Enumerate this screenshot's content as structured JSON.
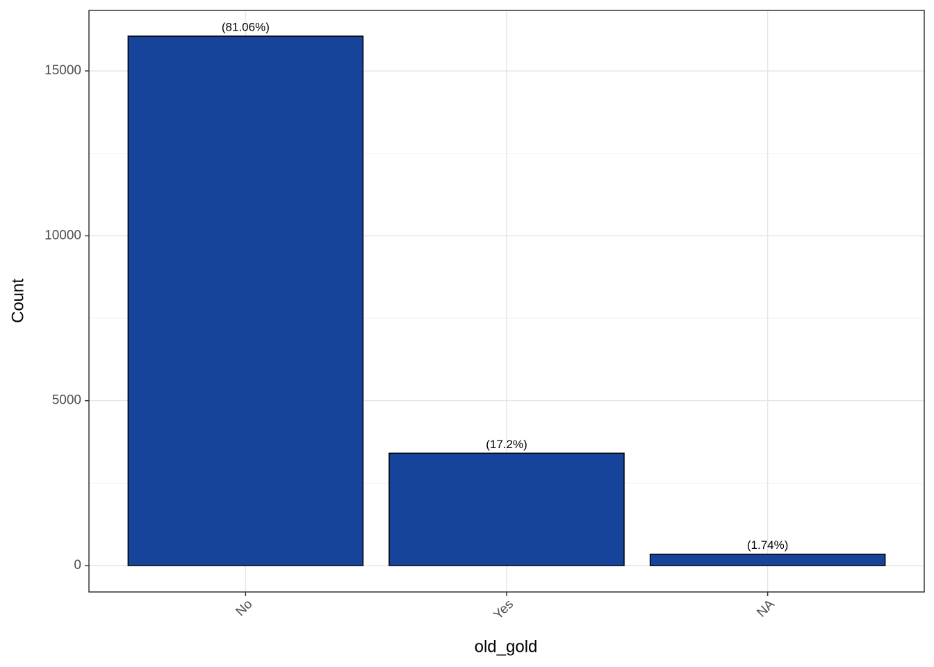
{
  "chart_data": {
    "type": "bar",
    "x_label": "old_gold",
    "y_label": "Count",
    "categories": [
      "No",
      "Yes",
      "NA"
    ],
    "values": [
      16055,
      3407,
      345
    ],
    "bar_labels": [
      "(81.06%)",
      "(17.2%)",
      "(1.74%)"
    ],
    "color": "#17449b",
    "ylim": [
      -801,
      16835
    ],
    "yticks": [
      0,
      5000,
      10000,
      15000
    ],
    "minor_yticks": [
      2500,
      7500,
      12500
    ],
    "grid": true
  }
}
